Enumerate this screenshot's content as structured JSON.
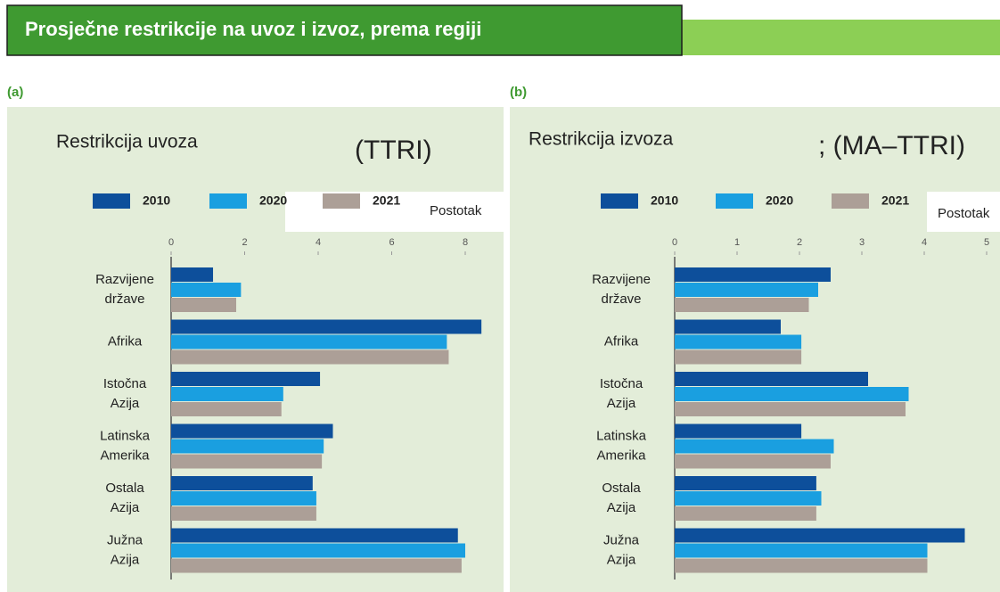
{
  "header": {
    "title": "Prosječne restrikcije na uvoz i izvoz, prema regiji"
  },
  "chart_data": [
    {
      "type": "bar",
      "orientation": "horizontal",
      "panel": "(a)",
      "title": "Restrikcija uvoza",
      "subtitle": "(TTRI)",
      "x_label": "Postotak",
      "categories": [
        [
          "Razvijene",
          "države"
        ],
        [
          "Afrika"
        ],
        [
          "Istočna",
          "Azija"
        ],
        [
          "Latinska",
          "Amerika"
        ],
        [
          "Ostala",
          "Azija"
        ],
        [
          "Južna",
          "Azija"
        ]
      ],
      "series": [
        {
          "name": "2010",
          "color": "#0d4f9b",
          "values": [
            1.14,
            8.44,
            4.05,
            4.4,
            3.85,
            7.8
          ]
        },
        {
          "name": "2020",
          "color": "#1a9fe0",
          "values": [
            1.9,
            7.5,
            3.05,
            4.15,
            3.95,
            8.0
          ]
        },
        {
          "name": "2021",
          "color": "#ac9f97",
          "values": [
            1.77,
            7.55,
            3.0,
            4.1,
            3.95,
            7.9
          ]
        }
      ],
      "xlim": [
        0,
        8.6
      ],
      "xticks": [
        0,
        2,
        4,
        6,
        8
      ]
    },
    {
      "type": "bar",
      "orientation": "horizontal",
      "panel": "(b)",
      "title": "Restrikcija izvoza",
      "subtitle": "; (MA–TTRI)",
      "x_label": "Postotak",
      "categories": [
        [
          "Razvijene",
          "države"
        ],
        [
          "Afrika"
        ],
        [
          "Istočna",
          "Azija"
        ],
        [
          "Latinska",
          "Amerika"
        ],
        [
          "Ostala",
          "Azija"
        ],
        [
          "Južna",
          "Azija"
        ]
      ],
      "series": [
        {
          "name": "2010",
          "color": "#0d4f9b",
          "values": [
            2.5,
            1.7,
            3.1,
            2.03,
            2.27,
            4.65
          ]
        },
        {
          "name": "2020",
          "color": "#1a9fe0",
          "values": [
            2.3,
            2.03,
            3.75,
            2.55,
            2.35,
            4.05
          ]
        },
        {
          "name": "2021",
          "color": "#ac9f97",
          "values": [
            2.15,
            2.03,
            3.7,
            2.5,
            2.27,
            4.05
          ]
        }
      ],
      "xlim": [
        0,
        5.2
      ],
      "xticks": [
        0,
        1,
        2,
        3,
        4,
        5
      ]
    }
  ]
}
